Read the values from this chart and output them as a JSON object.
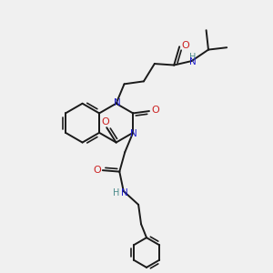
{
  "bg_color": "#f0f0f0",
  "bond_color": "#1a1a1a",
  "N_color": "#2020cc",
  "O_color": "#cc2020",
  "H_color": "#4a8a8a",
  "bond_width": 1.4,
  "figsize": [
    3.0,
    3.0
  ],
  "dpi": 100,
  "xlim": [
    0,
    10
  ],
  "ylim": [
    0,
    10
  ]
}
